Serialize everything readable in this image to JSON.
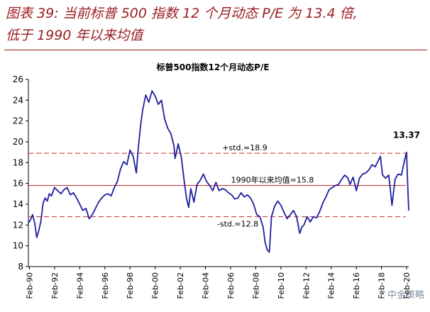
{
  "caption": {
    "line1": "图表 39:  当前标普 500 指数 12 个月动态 P/E 为 13.4 倍,",
    "line2": "低于 1990 年以来均值"
  },
  "watermark": "中金策略",
  "colors": {
    "caption": "#9b1b1f",
    "series": "#1f1f9e",
    "mean_line": "#c0272d",
    "std_line": "#c0272d",
    "axis": "#000000"
  },
  "chart_data": {
    "type": "line",
    "title": "标普500指数12个月动态P/E",
    "xlabel": "",
    "ylabel": "",
    "x_range": [
      "1990-01",
      "2020-04"
    ],
    "ylim": [
      8,
      26
    ],
    "yticks": [
      8,
      10,
      12,
      14,
      16,
      18,
      20,
      22,
      24,
      26
    ],
    "xticks": [
      "Feb-90",
      "Feb-92",
      "Feb-94",
      "Feb-96",
      "Feb-98",
      "Feb-00",
      "Feb-02",
      "Feb-04",
      "Feb-06",
      "Feb-08",
      "Feb-10",
      "Feb-12",
      "Feb-14",
      "Feb-16",
      "Feb-18",
      "Feb-20"
    ],
    "grid": false,
    "legend": "none",
    "series": [
      {
        "x": [
          "1990-01",
          "1990-03",
          "1990-05",
          "1990-07",
          "1990-09",
          "1990-11",
          "1991-01",
          "1991-03",
          "1991-05",
          "1991-07",
          "1991-09",
          "1991-11",
          "1992-02",
          "1992-05",
          "1992-08",
          "1992-11",
          "1993-02",
          "1993-05",
          "1993-08",
          "1993-11",
          "1994-02",
          "1994-05",
          "1994-08",
          "1994-11",
          "1995-02",
          "1995-05",
          "1995-08",
          "1995-11",
          "1996-02",
          "1996-05",
          "1996-08",
          "1996-11",
          "1997-02",
          "1997-05",
          "1997-08",
          "1997-11",
          "1998-02",
          "1998-05",
          "1998-08",
          "1998-10",
          "1998-12",
          "1999-02",
          "1999-05",
          "1999-08",
          "1999-11",
          "2000-02",
          "2000-05",
          "2000-08",
          "2000-11",
          "2001-02",
          "2001-05",
          "2001-08",
          "2001-09",
          "2001-12",
          "2002-03",
          "2002-06",
          "2002-08",
          "2002-10",
          "2002-12",
          "2003-03",
          "2003-06",
          "2003-09",
          "2003-12",
          "2004-03",
          "2004-06",
          "2004-09",
          "2004-12",
          "2005-03",
          "2005-06",
          "2005-09",
          "2005-12",
          "2006-03",
          "2006-06",
          "2006-09",
          "2006-12",
          "2007-03",
          "2007-06",
          "2007-09",
          "2007-12",
          "2008-03",
          "2008-06",
          "2008-09",
          "2008-11",
          "2009-01",
          "2009-03",
          "2009-05",
          "2009-08",
          "2009-11",
          "2010-02",
          "2010-05",
          "2010-08",
          "2010-11",
          "2011-02",
          "2011-05",
          "2011-08",
          "2011-10",
          "2011-12",
          "2012-03",
          "2012-06",
          "2012-09",
          "2012-12",
          "2013-03",
          "2013-06",
          "2013-09",
          "2013-12",
          "2014-03",
          "2014-06",
          "2014-09",
          "2014-12",
          "2015-03",
          "2015-06",
          "2015-08",
          "2015-11",
          "2016-02",
          "2016-05",
          "2016-08",
          "2016-11",
          "2017-02",
          "2017-05",
          "2017-08",
          "2017-11",
          "2018-01",
          "2018-03",
          "2018-06",
          "2018-09",
          "2018-12",
          "2019-03",
          "2019-06",
          "2019-09",
          "2019-12",
          "2020-02",
          "2020-03",
          "2020-04"
        ],
        "y": [
          12.2,
          12.5,
          13.0,
          12.2,
          10.8,
          11.5,
          12.4,
          14.1,
          14.6,
          14.3,
          15.0,
          14.8,
          15.6,
          15.3,
          15.0,
          15.4,
          15.6,
          14.9,
          15.1,
          14.6,
          14.0,
          13.4,
          13.6,
          12.6,
          13.0,
          13.6,
          14.2,
          14.6,
          14.9,
          15.0,
          14.8,
          15.6,
          16.2,
          17.4,
          18.1,
          17.8,
          19.2,
          18.6,
          17.0,
          19.5,
          21.5,
          23.0,
          24.5,
          23.8,
          24.9,
          24.4,
          23.6,
          24.0,
          22.2,
          21.3,
          20.8,
          19.6,
          18.4,
          19.8,
          18.5,
          16.0,
          14.5,
          13.7,
          15.5,
          14.2,
          15.9,
          16.3,
          16.9,
          16.2,
          15.8,
          15.3,
          16.1,
          15.3,
          15.5,
          15.4,
          15.1,
          14.9,
          14.5,
          14.6,
          15.1,
          14.7,
          14.9,
          14.6,
          14.0,
          13.0,
          12.8,
          11.8,
          10.3,
          9.6,
          9.4,
          12.8,
          13.8,
          14.3,
          13.9,
          13.2,
          12.6,
          13.0,
          13.4,
          12.8,
          11.2,
          11.8,
          12.0,
          12.8,
          12.3,
          12.8,
          12.7,
          13.3,
          14.1,
          14.7,
          15.4,
          15.6,
          15.8,
          15.9,
          16.4,
          16.8,
          16.5,
          15.9,
          16.6,
          15.3,
          16.5,
          16.9,
          17.0,
          17.3,
          17.8,
          17.6,
          18.2,
          18.6,
          16.8,
          16.5,
          16.8,
          13.9,
          16.4,
          16.9,
          16.8,
          18.2,
          19.0,
          16.0,
          13.4
        ]
      }
    ],
    "mean": {
      "value": 15.8,
      "label": "1990年以来均值=15.8"
    },
    "plus_std": {
      "value": 18.9,
      "label": "+std.=18.9"
    },
    "minus_std": {
      "value": 12.8,
      "label": "-std.=12.8"
    },
    "annotations": [
      {
        "x": "2020-02",
        "y": 19.0,
        "text": "13.37"
      }
    ]
  }
}
